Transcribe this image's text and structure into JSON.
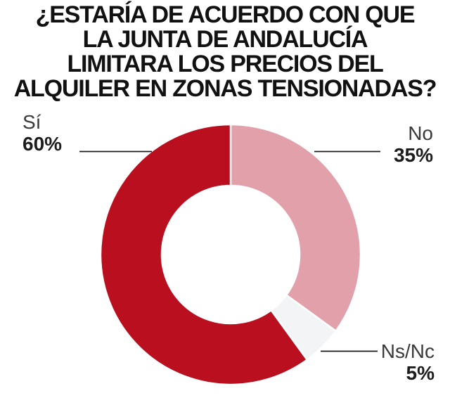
{
  "title": {
    "lines": [
      "¿ESTARÍA DE ACUERDO CON QUE",
      "LA JUNTA DE ANDALUCÍA",
      "LIMITARA LOS PRECIOS DEL",
      "ALQUILER EN ZONAS TENSIONADAS?"
    ]
  },
  "chart_data": {
    "type": "pie",
    "donut": true,
    "title": "¿ESTARÍA DE ACUERDO CON QUE LA JUNTA DE ANDALUCÍA LIMITARA LOS PRECIOS DEL ALQUILER EN ZONAS TENSIONADAS?",
    "unit": "%",
    "start_angle_deg": 0,
    "clockwise": true,
    "inner_radius_ratio": 0.53,
    "legend": "none",
    "slices": [
      {
        "label": "No",
        "value": 35,
        "value_text": "35%",
        "color": "#e2a1aa",
        "callout_side": "right"
      },
      {
        "label": "Ns/Nc",
        "value": 5,
        "value_text": "5%",
        "color": "#f3f4f6",
        "callout_side": "bottom-right"
      },
      {
        "label": "Sí",
        "value": 60,
        "value_text": "60%",
        "color": "#b90f1f",
        "callout_side": "left"
      }
    ]
  },
  "styles": {
    "background": "#ffffff",
    "title_color": "#111111",
    "label_color": "#3a3a3a",
    "value_color": "#1c1c1c",
    "connector_color": "#1a1a1a",
    "slice_gap_color": "#ffffff"
  }
}
